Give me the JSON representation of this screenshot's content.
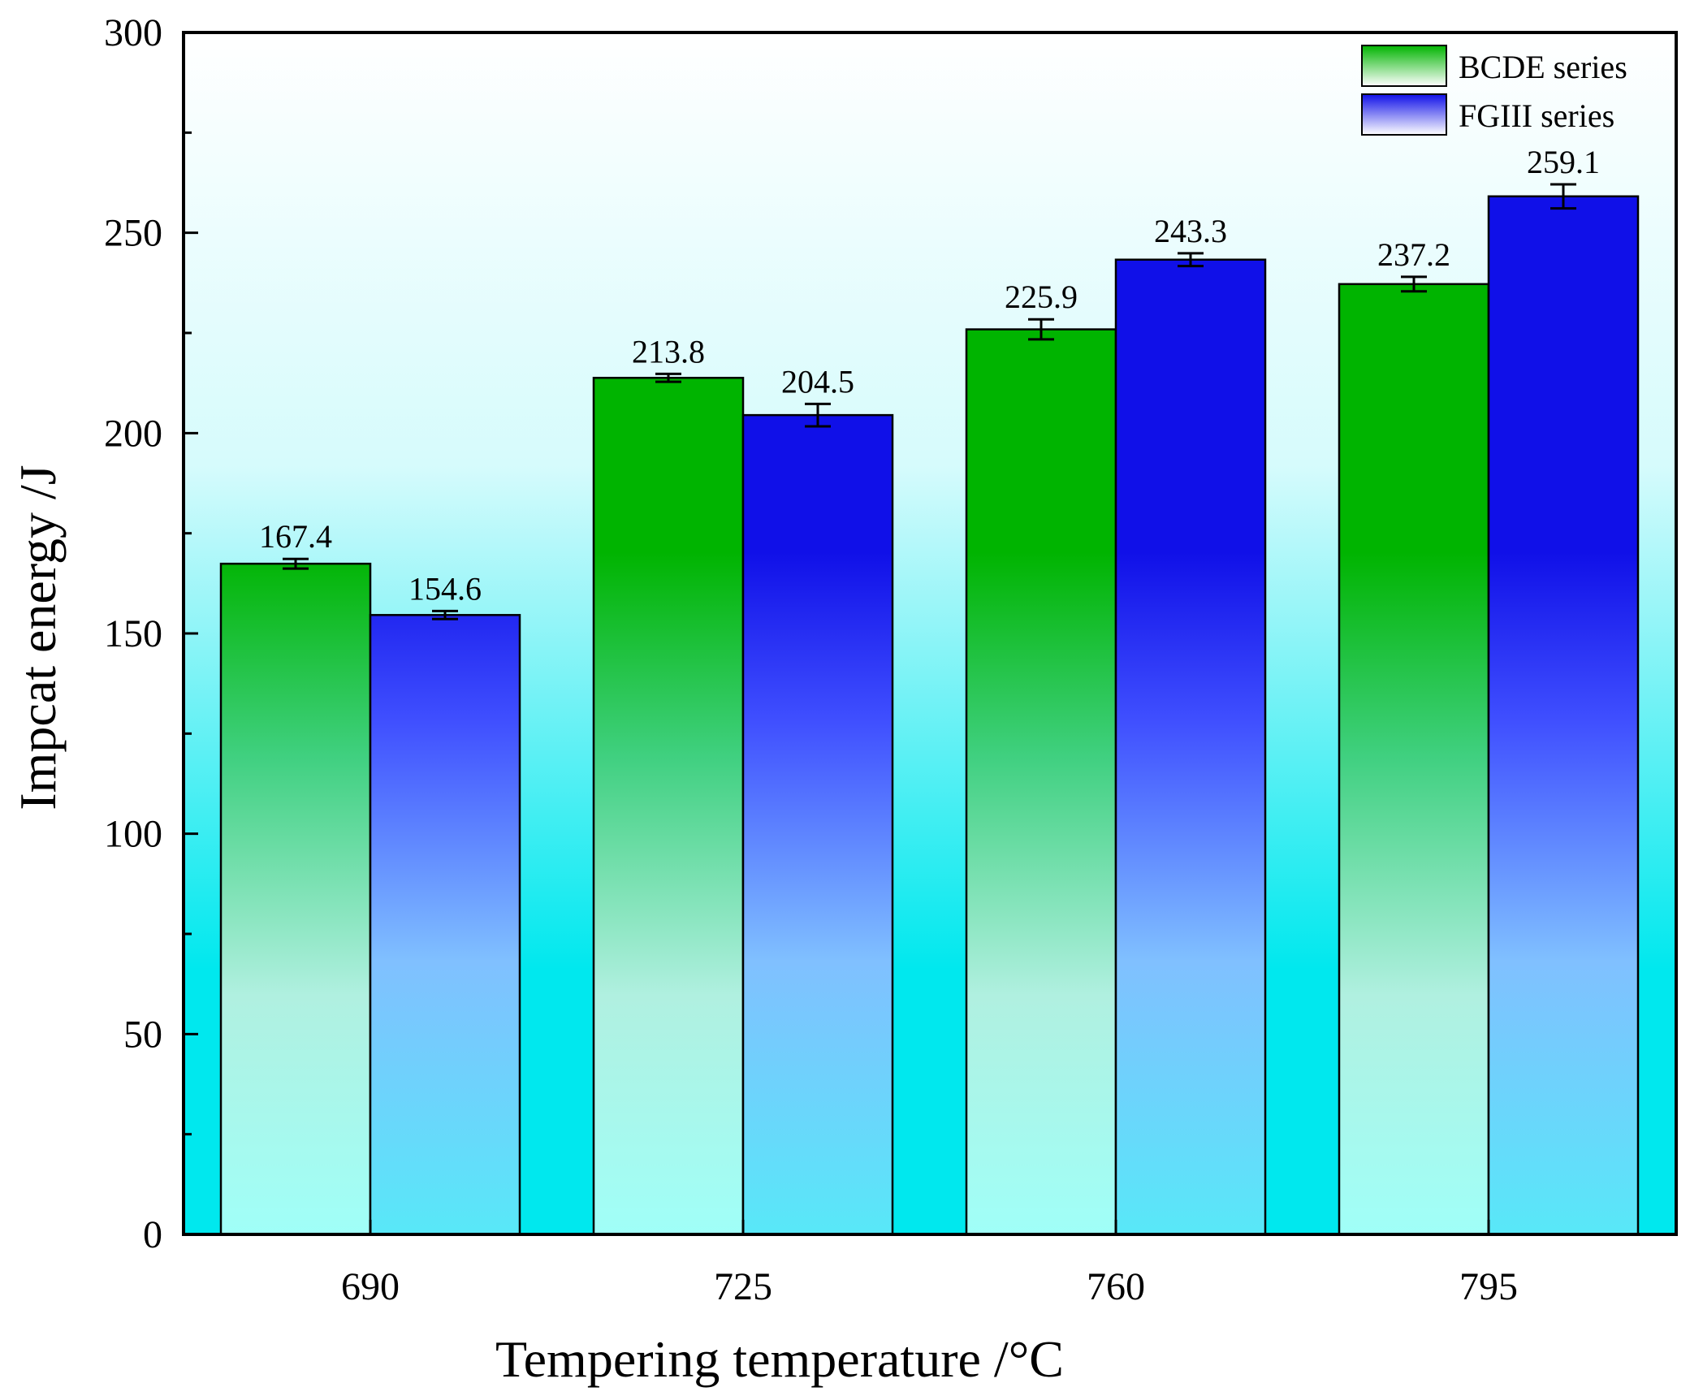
{
  "chart_data": {
    "type": "bar",
    "title": "",
    "xlabel": "Tempering temperature /°C",
    "ylabel": "Impcat energy /J",
    "categories": [
      "690",
      "725",
      "760",
      "795"
    ],
    "ylim": [
      0,
      300
    ],
    "yticks": [
      "0",
      "50",
      "100",
      "150",
      "200",
      "250",
      "300"
    ],
    "series": [
      {
        "name": "BCDE series",
        "values": [
          167.4,
          213.8,
          225.9,
          237.2
        ],
        "labels": [
          "167.4",
          "213.8",
          "225.9",
          "237.2"
        ],
        "errors": [
          1.2,
          1.0,
          2.5,
          1.8
        ],
        "color_top": "#00b400",
        "color_bottom": "#a0fff8"
      },
      {
        "name": "FGIII series",
        "values": [
          154.6,
          204.5,
          243.3,
          259.1
        ],
        "labels": [
          "154.6",
          "204.5",
          "243.3",
          "259.1"
        ],
        "errors": [
          1.0,
          2.8,
          1.6,
          3.0
        ],
        "color_top": "#1010e8",
        "color_bottom": "#58e8f8"
      }
    ],
    "legend_position": "top-right",
    "background_top": "#ffffff",
    "background_bottom": "#00e8ee",
    "grid": false
  }
}
